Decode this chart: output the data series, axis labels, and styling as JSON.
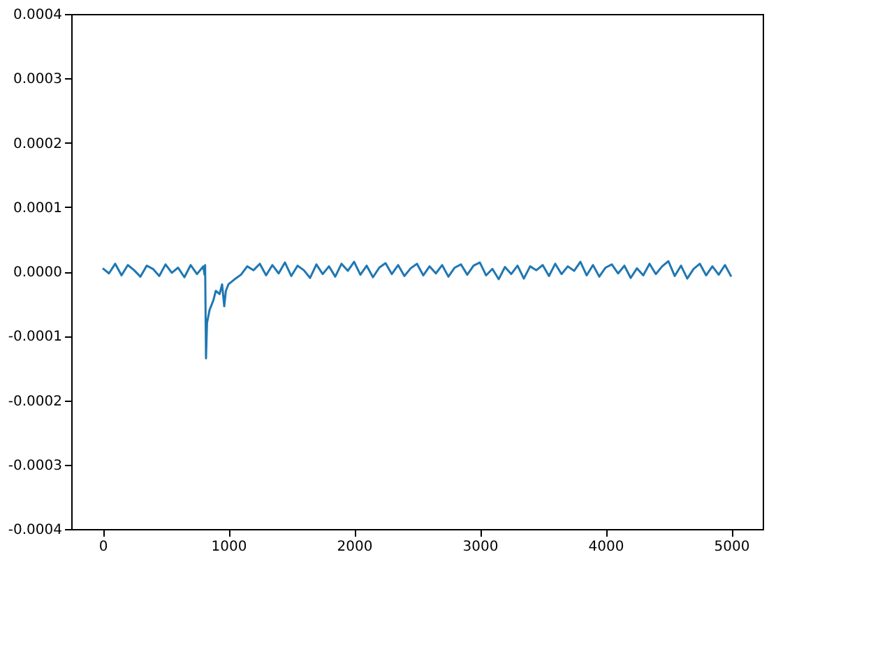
{
  "chart_data": {
    "type": "line",
    "x": [
      0,
      50,
      100,
      150,
      200,
      250,
      300,
      350,
      400,
      450,
      500,
      550,
      600,
      650,
      700,
      750,
      800,
      810,
      815,
      822,
      830,
      850,
      880,
      900,
      930,
      950,
      967,
      980,
      1000,
      1050,
      1100,
      1150,
      1200,
      1250,
      1300,
      1350,
      1400,
      1450,
      1500,
      1550,
      1600,
      1650,
      1700,
      1750,
      1800,
      1850,
      1900,
      1950,
      2000,
      2050,
      2100,
      2150,
      2200,
      2250,
      2300,
      2350,
      2400,
      2450,
      2500,
      2550,
      2600,
      2650,
      2700,
      2750,
      2800,
      2850,
      2900,
      2950,
      3000,
      3050,
      3100,
      3150,
      3200,
      3250,
      3300,
      3350,
      3400,
      3450,
      3500,
      3550,
      3600,
      3650,
      3700,
      3750,
      3800,
      3850,
      3900,
      3950,
      4000,
      4050,
      4100,
      4150,
      4200,
      4250,
      4300,
      4350,
      4400,
      4450,
      4500,
      4550,
      4600,
      4650,
      4700,
      4750,
      4800,
      4850,
      4900,
      4950,
      5000
    ],
    "series": [
      {
        "color": "#1f77b4",
        "values": [
          5e-06,
          -3e-06,
          1.2e-05,
          -6e-06,
          1e-05,
          2e-06,
          -8e-06,
          9e-06,
          4e-06,
          -7e-06,
          1.1e-05,
          -2e-06,
          6e-06,
          -9e-06,
          1e-05,
          -4e-06,
          8e-06,
          -5e-06,
          1e-05,
          -0.000135,
          -8e-05,
          -6e-05,
          -4.5e-05,
          -3e-05,
          -3.5e-05,
          -2e-05,
          -5.4e-05,
          -3e-05,
          -2e-05,
          -1.2e-05,
          -5e-06,
          8e-06,
          2e-06,
          1.2e-05,
          -6e-06,
          1e-05,
          -3e-06,
          1.4e-05,
          -7e-06,
          9e-06,
          2e-06,
          -1e-05,
          1.1e-05,
          -4e-06,
          8e-06,
          -8e-06,
          1.2e-05,
          1e-06,
          1.5e-05,
          -5e-06,
          9e-06,
          -9e-06,
          6e-06,
          1.3e-05,
          -4e-06,
          1e-05,
          -7e-06,
          5e-06,
          1.2e-05,
          -6e-06,
          8e-06,
          -3e-06,
          1e-05,
          -8e-06,
          6e-06,
          1.1e-05,
          -5e-06,
          9e-06,
          1.4e-05,
          -6e-06,
          4e-06,
          -1.2e-05,
          7e-06,
          -4e-06,
          9e-06,
          -1.1e-05,
          8e-06,
          2e-06,
          1e-05,
          -7e-06,
          1.2e-05,
          -4e-06,
          8e-06,
          1e-06,
          1.5e-05,
          -6e-06,
          1e-05,
          -8e-06,
          6e-06,
          1.1e-05,
          -3e-06,
          9e-06,
          -1e-05,
          5e-06,
          -6e-06,
          1.2e-05,
          -4e-06,
          8e-06,
          1.6e-05,
          -7e-06,
          9e-06,
          -1.1e-05,
          4e-06,
          1.2e-05,
          -6e-06,
          8e-06,
          -5e-06,
          1e-05,
          -8e-06
        ]
      }
    ],
    "xlim": [
      -250,
      5250
    ],
    "xticks": [
      0,
      1000,
      2000,
      3000,
      4000,
      5000
    ],
    "ylim": [
      -0.0004,
      0.0004
    ],
    "yticks": [
      -0.0004,
      -0.0003,
      -0.0002,
      -0.0001,
      {
        "value": 0,
        "label": "0.0000"
      },
      0.0001,
      0.0002,
      0.0003,
      0.0004
    ],
    "grid": false
  }
}
